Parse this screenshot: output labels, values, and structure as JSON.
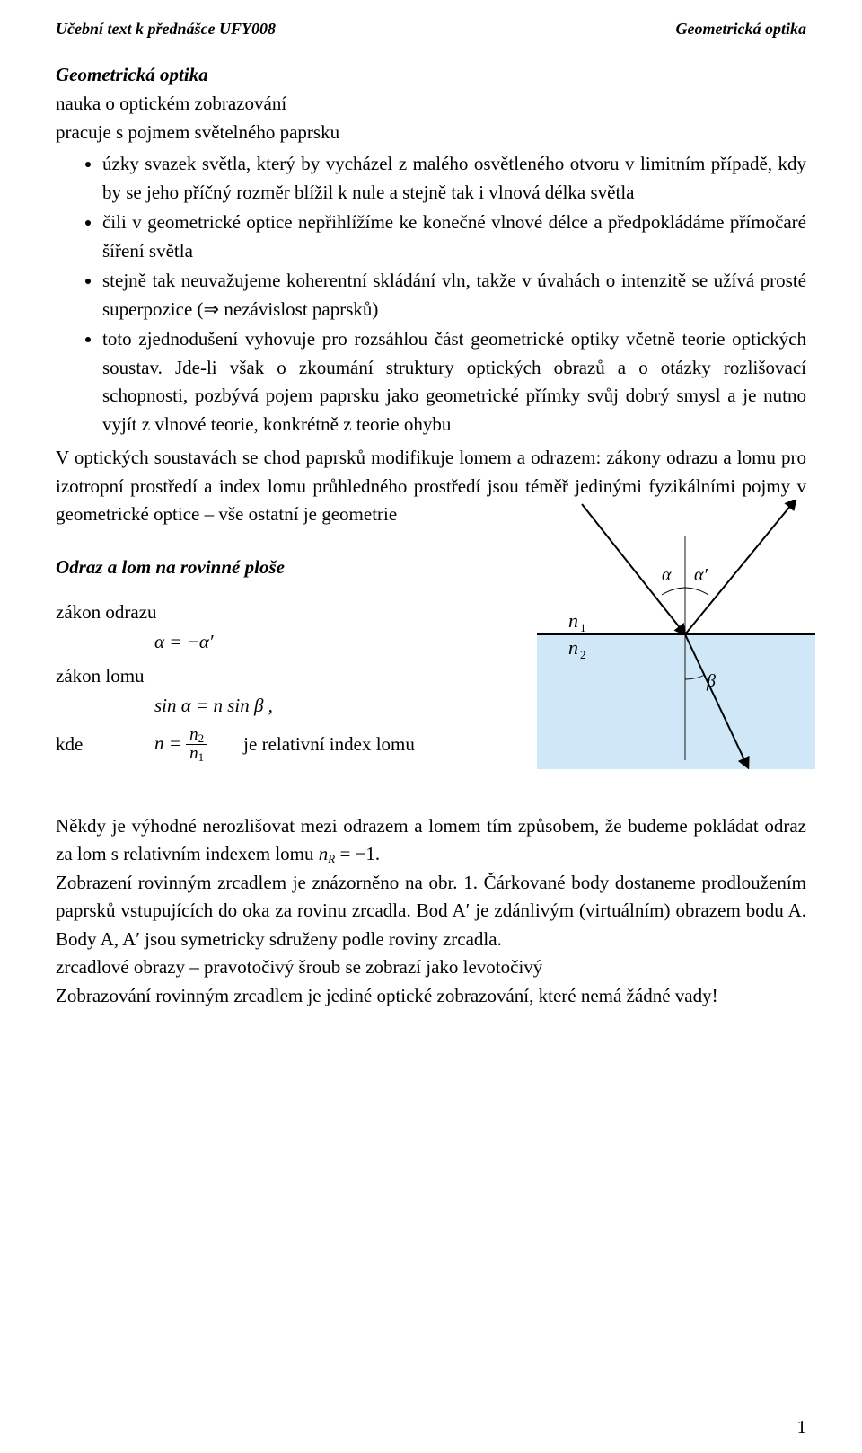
{
  "header": {
    "left": "Učební text k přednášce UFY008",
    "right": "Geometrická optika"
  },
  "h1": "Geometrická optika",
  "intro1": "nauka o optickém zobrazování",
  "intro2": "pracuje s pojmem světelného paprsku",
  "bullets": [
    "úzky svazek světla, který by vycházel z malého osvětleného otvoru v limitním případě, kdy by se jeho příčný rozměr blížil k nule a stejně tak i vlnová délka světla",
    "čili v geometrické optice nepřihlížíme ke konečné vlnové délce a předpokládáme přímočaré šíření světla",
    "stejně tak neuvažujeme koherentní skládání vln, takže v úvahách o intenzitě se užívá prosté superpozice (⇒ nezávislost paprsků)",
    "toto zjednodušení vyhovuje pro rozsáhlou část geometrické optiky včetně teorie optických soustav. Jde-li však o zkoumání struktury optických obrazů a o otázky rozlišovací schopnosti, pozbývá pojem paprsku jako geometrické přímky svůj dobrý smysl a je nutno vyjít z vlnové teorie, konkrétně z teorie ohybu"
  ],
  "para_after_bullets": "V optických soustavách se chod paprsků modifikuje lomem a odrazem: zákony odrazu a lomu pro izotropní prostředí a index lomu průhledného prostředí jsou téměř jedinými fyzikálními pojmy v geometrické optice – vše ostatní je geometrie",
  "h2": "Odraz a lom na rovinné ploše",
  "laws": {
    "reflection_label": "zákon odrazu",
    "reflection_eq": "α = −α′",
    "refraction_label": "zákon lomu",
    "refraction_eq": "sin α = n sin β ,",
    "kde": "kde",
    "n_eq_left": "n =",
    "n_num": "n",
    "n_num_sub": "2",
    "n_den": "n",
    "n_den_sub": "1",
    "rel_index_text": "je relativní index lomu"
  },
  "diagram": {
    "n1": "n",
    "n1_sub": "1",
    "n2": "n",
    "n2_sub": "2",
    "alpha": "α",
    "alpha_prime": "α′",
    "beta": "β",
    "medium_color": "#cfe7f7",
    "line_color": "#000000",
    "bg_color": "#ffffff",
    "stroke_thin": 0.9,
    "stroke_thick": 2
  },
  "closing_paragraphs": [
    {
      "pre": "Někdy je výhodné nerozlišovat mezi odrazem a lomem tím způsobem, že budeme pokládat odraz za lom s relativním indexem lomu ",
      "mid_it": "n",
      "mid_sub": "R",
      "post": " = −1."
    },
    {
      "text": "Zobrazení rovinným zrcadlem je znázorněno na obr. 1. Čárkované body dostaneme prodloužením paprsků vstupujících do oka za rovinu zrcadla. Bod A′ je zdánlivým (virtuálním) obrazem bodu A. Body A, A′ jsou symetricky sdruženy podle roviny zrcadla."
    },
    {
      "text": "zrcadlové obrazy – pravotočivý šroub se zobrazí jako levotočivý"
    },
    {
      "text": "Zobrazování rovinným zrcadlem je jediné optické zobrazování, které nemá žádné vady!"
    }
  ],
  "page_number": "1"
}
